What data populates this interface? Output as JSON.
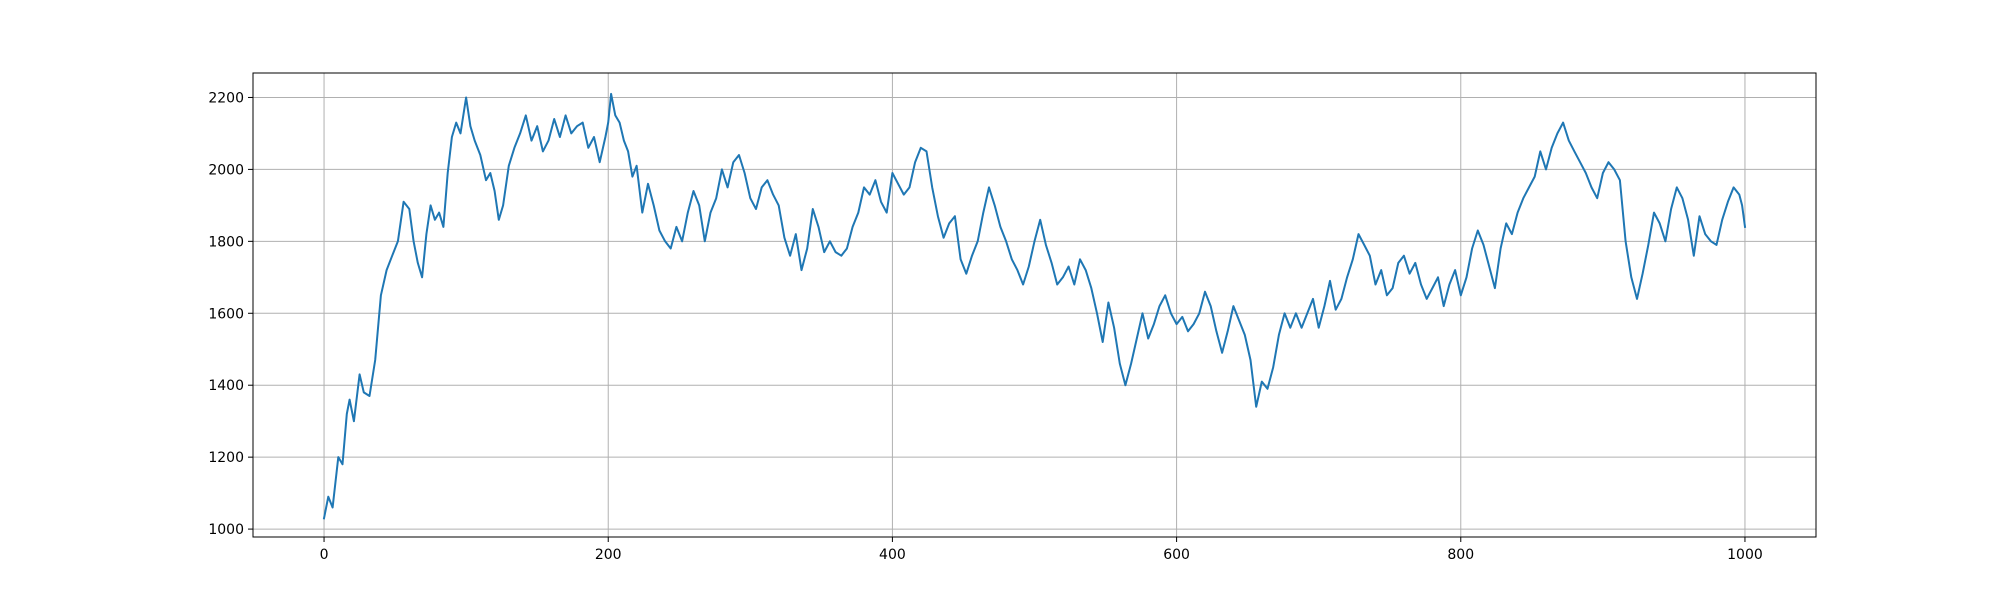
{
  "chart_data": {
    "type": "line",
    "title": "",
    "xlabel": "",
    "ylabel": "",
    "xlim": [
      -50,
      1050
    ],
    "ylim": [
      978,
      2268
    ],
    "grid": true,
    "xticks": [
      0,
      200,
      400,
      600,
      800,
      1000
    ],
    "yticks": [
      1000,
      1200,
      1400,
      1600,
      1800,
      2000,
      2200
    ],
    "series": [
      {
        "color": "#1f77b4",
        "points": [
          [
            0,
            1030
          ],
          [
            3,
            1090
          ],
          [
            6,
            1060
          ],
          [
            10,
            1200
          ],
          [
            13,
            1180
          ],
          [
            16,
            1320
          ],
          [
            18,
            1360
          ],
          [
            21,
            1300
          ],
          [
            25,
            1430
          ],
          [
            28,
            1380
          ],
          [
            32,
            1370
          ],
          [
            36,
            1470
          ],
          [
            40,
            1650
          ],
          [
            44,
            1720
          ],
          [
            48,
            1760
          ],
          [
            52,
            1800
          ],
          [
            56,
            1910
          ],
          [
            60,
            1890
          ],
          [
            63,
            1800
          ],
          [
            66,
            1740
          ],
          [
            69,
            1700
          ],
          [
            72,
            1820
          ],
          [
            75,
            1900
          ],
          [
            78,
            1860
          ],
          [
            81,
            1880
          ],
          [
            84,
            1840
          ],
          [
            87,
            1990
          ],
          [
            90,
            2090
          ],
          [
            93,
            2130
          ],
          [
            96,
            2100
          ],
          [
            100,
            2200
          ],
          [
            103,
            2120
          ],
          [
            106,
            2080
          ],
          [
            110,
            2040
          ],
          [
            114,
            1970
          ],
          [
            117,
            1990
          ],
          [
            120,
            1940
          ],
          [
            123,
            1860
          ],
          [
            126,
            1900
          ],
          [
            130,
            2010
          ],
          [
            134,
            2060
          ],
          [
            138,
            2100
          ],
          [
            142,
            2150
          ],
          [
            146,
            2080
          ],
          [
            150,
            2120
          ],
          [
            154,
            2050
          ],
          [
            158,
            2080
          ],
          [
            162,
            2140
          ],
          [
            166,
            2090
          ],
          [
            170,
            2150
          ],
          [
            174,
            2100
          ],
          [
            178,
            2120
          ],
          [
            182,
            2130
          ],
          [
            186,
            2060
          ],
          [
            190,
            2090
          ],
          [
            194,
            2020
          ],
          [
            198,
            2090
          ],
          [
            200,
            2130
          ],
          [
            202,
            2210
          ],
          [
            205,
            2150
          ],
          [
            208,
            2130
          ],
          [
            211,
            2080
          ],
          [
            214,
            2050
          ],
          [
            217,
            1980
          ],
          [
            220,
            2010
          ],
          [
            224,
            1880
          ],
          [
            228,
            1960
          ],
          [
            232,
            1900
          ],
          [
            236,
            1830
          ],
          [
            240,
            1800
          ],
          [
            244,
            1780
          ],
          [
            248,
            1840
          ],
          [
            252,
            1800
          ],
          [
            256,
            1880
          ],
          [
            260,
            1940
          ],
          [
            264,
            1900
          ],
          [
            268,
            1800
          ],
          [
            272,
            1880
          ],
          [
            276,
            1920
          ],
          [
            280,
            2000
          ],
          [
            284,
            1950
          ],
          [
            288,
            2020
          ],
          [
            292,
            2040
          ],
          [
            296,
            1990
          ],
          [
            300,
            1920
          ],
          [
            304,
            1890
          ],
          [
            308,
            1950
          ],
          [
            312,
            1970
          ],
          [
            316,
            1930
          ],
          [
            320,
            1900
          ],
          [
            324,
            1810
          ],
          [
            328,
            1760
          ],
          [
            332,
            1820
          ],
          [
            336,
            1720
          ],
          [
            340,
            1780
          ],
          [
            344,
            1890
          ],
          [
            348,
            1840
          ],
          [
            352,
            1770
          ],
          [
            356,
            1800
          ],
          [
            360,
            1770
          ],
          [
            364,
            1760
          ],
          [
            368,
            1780
          ],
          [
            372,
            1840
          ],
          [
            376,
            1880
          ],
          [
            380,
            1950
          ],
          [
            384,
            1930
          ],
          [
            388,
            1970
          ],
          [
            392,
            1910
          ],
          [
            396,
            1880
          ],
          [
            400,
            1990
          ],
          [
            404,
            1960
          ],
          [
            408,
            1930
          ],
          [
            412,
            1950
          ],
          [
            416,
            2020
          ],
          [
            420,
            2060
          ],
          [
            424,
            2050
          ],
          [
            428,
            1950
          ],
          [
            432,
            1870
          ],
          [
            436,
            1810
          ],
          [
            440,
            1850
          ],
          [
            444,
            1870
          ],
          [
            448,
            1750
          ],
          [
            452,
            1710
          ],
          [
            456,
            1760
          ],
          [
            460,
            1800
          ],
          [
            464,
            1880
          ],
          [
            468,
            1950
          ],
          [
            472,
            1900
          ],
          [
            476,
            1840
          ],
          [
            480,
            1800
          ],
          [
            484,
            1750
          ],
          [
            488,
            1720
          ],
          [
            492,
            1680
          ],
          [
            496,
            1730
          ],
          [
            500,
            1800
          ],
          [
            504,
            1860
          ],
          [
            508,
            1790
          ],
          [
            512,
            1740
          ],
          [
            516,
            1680
          ],
          [
            520,
            1700
          ],
          [
            524,
            1730
          ],
          [
            528,
            1680
          ],
          [
            532,
            1750
          ],
          [
            536,
            1720
          ],
          [
            540,
            1670
          ],
          [
            544,
            1600
          ],
          [
            548,
            1520
          ],
          [
            552,
            1630
          ],
          [
            556,
            1560
          ],
          [
            560,
            1460
          ],
          [
            564,
            1400
          ],
          [
            568,
            1460
          ],
          [
            572,
            1530
          ],
          [
            576,
            1600
          ],
          [
            580,
            1530
          ],
          [
            584,
            1570
          ],
          [
            588,
            1620
          ],
          [
            592,
            1650
          ],
          [
            596,
            1600
          ],
          [
            600,
            1570
          ],
          [
            604,
            1590
          ],
          [
            608,
            1550
          ],
          [
            612,
            1570
          ],
          [
            616,
            1600
          ],
          [
            620,
            1660
          ],
          [
            624,
            1620
          ],
          [
            628,
            1550
          ],
          [
            632,
            1490
          ],
          [
            636,
            1550
          ],
          [
            640,
            1620
          ],
          [
            644,
            1580
          ],
          [
            648,
            1540
          ],
          [
            652,
            1470
          ],
          [
            656,
            1340
          ],
          [
            660,
            1410
          ],
          [
            664,
            1390
          ],
          [
            668,
            1450
          ],
          [
            672,
            1540
          ],
          [
            676,
            1600
          ],
          [
            680,
            1560
          ],
          [
            684,
            1600
          ],
          [
            688,
            1560
          ],
          [
            692,
            1600
          ],
          [
            696,
            1640
          ],
          [
            700,
            1560
          ],
          [
            704,
            1620
          ],
          [
            708,
            1690
          ],
          [
            712,
            1610
          ],
          [
            716,
            1640
          ],
          [
            720,
            1700
          ],
          [
            724,
            1750
          ],
          [
            728,
            1820
          ],
          [
            732,
            1790
          ],
          [
            736,
            1760
          ],
          [
            740,
            1680
          ],
          [
            744,
            1720
          ],
          [
            748,
            1650
          ],
          [
            752,
            1670
          ],
          [
            756,
            1740
          ],
          [
            760,
            1760
          ],
          [
            764,
            1710
          ],
          [
            768,
            1740
          ],
          [
            772,
            1680
          ],
          [
            776,
            1640
          ],
          [
            780,
            1670
          ],
          [
            784,
            1700
          ],
          [
            788,
            1620
          ],
          [
            792,
            1680
          ],
          [
            796,
            1720
          ],
          [
            800,
            1650
          ],
          [
            804,
            1700
          ],
          [
            808,
            1780
          ],
          [
            812,
            1830
          ],
          [
            816,
            1790
          ],
          [
            820,
            1730
          ],
          [
            824,
            1670
          ],
          [
            828,
            1780
          ],
          [
            832,
            1850
          ],
          [
            836,
            1820
          ],
          [
            840,
            1880
          ],
          [
            844,
            1920
          ],
          [
            848,
            1950
          ],
          [
            852,
            1980
          ],
          [
            856,
            2050
          ],
          [
            860,
            2000
          ],
          [
            864,
            2060
          ],
          [
            868,
            2100
          ],
          [
            872,
            2130
          ],
          [
            876,
            2080
          ],
          [
            880,
            2050
          ],
          [
            884,
            2020
          ],
          [
            888,
            1990
          ],
          [
            892,
            1950
          ],
          [
            896,
            1920
          ],
          [
            900,
            1990
          ],
          [
            904,
            2020
          ],
          [
            908,
            2000
          ],
          [
            912,
            1970
          ],
          [
            916,
            1800
          ],
          [
            920,
            1700
          ],
          [
            924,
            1640
          ],
          [
            928,
            1710
          ],
          [
            932,
            1790
          ],
          [
            936,
            1880
          ],
          [
            940,
            1850
          ],
          [
            944,
            1800
          ],
          [
            948,
            1890
          ],
          [
            952,
            1950
          ],
          [
            956,
            1920
          ],
          [
            960,
            1860
          ],
          [
            964,
            1760
          ],
          [
            968,
            1870
          ],
          [
            972,
            1820
          ],
          [
            976,
            1800
          ],
          [
            980,
            1790
          ],
          [
            984,
            1860
          ],
          [
            988,
            1910
          ],
          [
            992,
            1950
          ],
          [
            996,
            1930
          ],
          [
            998,
            1900
          ],
          [
            1000,
            1840
          ]
        ]
      }
    ]
  }
}
